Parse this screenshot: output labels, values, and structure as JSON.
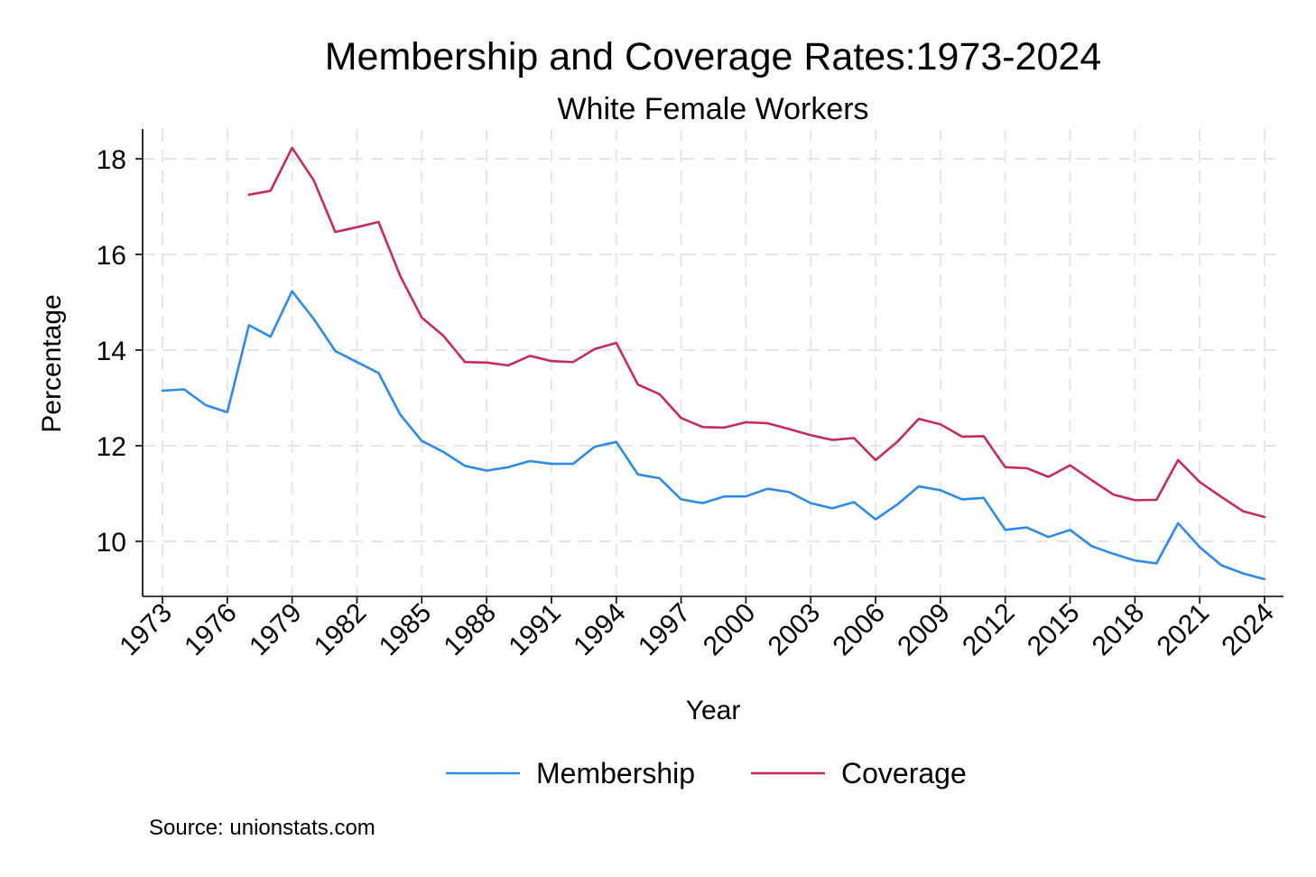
{
  "chart_data": {
    "type": "line",
    "title": "Membership and Coverage Rates:1973-2024",
    "subtitle": "White Female Workers",
    "xlabel": "Year",
    "ylabel": "Percentage",
    "source": "Source: unionstats.com",
    "xlim": [
      1973,
      2024
    ],
    "ylim": [
      9.2,
      18.6
    ],
    "x_ticks": [
      1973,
      1976,
      1979,
      1982,
      1985,
      1988,
      1991,
      1994,
      1997,
      2000,
      2003,
      2006,
      2009,
      2012,
      2015,
      2018,
      2021,
      2024
    ],
    "x_tick_labels": [
      "1973",
      "1976",
      "1979",
      "1982",
      "1985",
      "1988",
      "1991",
      "1994",
      "1997",
      "2000",
      "2003",
      "2006",
      "2009",
      "2012",
      "2015",
      "2018",
      "2021",
      "2024"
    ],
    "y_ticks": [
      10,
      12,
      14,
      16,
      18
    ],
    "y_tick_labels": [
      "10",
      "12",
      "14",
      "16",
      "18"
    ],
    "grid": true,
    "legend_position": "bottom",
    "series": [
      {
        "name": "Membership",
        "color": "#2e8ae6",
        "x": [
          1973,
          1974,
          1975,
          1976,
          1977,
          1978,
          1979,
          1980,
          1981,
          1982,
          1983,
          1984,
          1985,
          1986,
          1987,
          1988,
          1989,
          1990,
          1991,
          1992,
          1993,
          1994,
          1995,
          1996,
          1997,
          1998,
          1999,
          2000,
          2001,
          2002,
          2003,
          2004,
          2005,
          2006,
          2007,
          2008,
          2009,
          2010,
          2011,
          2012,
          2013,
          2014,
          2015,
          2016,
          2017,
          2018,
          2019,
          2020,
          2021,
          2022,
          2023,
          2024
        ],
        "values": [
          13.15,
          13.18,
          12.85,
          12.7,
          14.52,
          14.28,
          15.23,
          14.65,
          13.98,
          13.75,
          13.52,
          12.65,
          12.1,
          11.87,
          11.58,
          11.48,
          11.55,
          11.68,
          11.62,
          11.62,
          11.98,
          12.08,
          11.4,
          11.32,
          10.88,
          10.8,
          10.94,
          10.94,
          11.1,
          11.03,
          10.8,
          10.69,
          10.82,
          10.46,
          10.77,
          11.15,
          11.07,
          10.88,
          10.91,
          10.24,
          10.29,
          10.09,
          10.24,
          9.9,
          9.74,
          9.6,
          9.54,
          10.38,
          9.88,
          9.5,
          9.33,
          9.21
        ]
      },
      {
        "name": "Coverage",
        "color": "#c42a63",
        "x": [
          1977,
          1978,
          1979,
          1980,
          1981,
          1982,
          1983,
          1984,
          1985,
          1986,
          1987,
          1988,
          1989,
          1990,
          1991,
          1992,
          1993,
          1994,
          1995,
          1996,
          1997,
          1998,
          1999,
          2000,
          2001,
          2002,
          2003,
          2004,
          2005,
          2006,
          2007,
          2008,
          2009,
          2010,
          2011,
          2012,
          2013,
          2014,
          2015,
          2016,
          2017,
          2018,
          2019,
          2020,
          2021,
          2022,
          2023,
          2024
        ],
        "values": [
          17.25,
          17.33,
          18.23,
          17.55,
          16.47,
          16.57,
          16.68,
          15.55,
          14.68,
          14.3,
          13.75,
          13.74,
          13.68,
          13.88,
          13.77,
          13.75,
          14.02,
          14.15,
          13.28,
          13.08,
          12.58,
          12.39,
          12.38,
          12.49,
          12.47,
          12.35,
          12.22,
          12.12,
          12.16,
          11.7,
          12.08,
          12.56,
          12.45,
          12.19,
          12.2,
          11.55,
          11.53,
          11.35,
          11.59,
          11.28,
          10.98,
          10.86,
          10.87,
          11.7,
          11.24,
          10.93,
          10.63,
          10.51
        ]
      }
    ]
  }
}
